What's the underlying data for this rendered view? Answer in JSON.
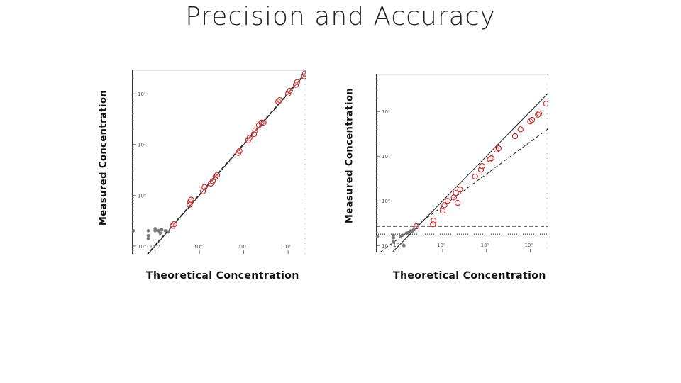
{
  "slide": {
    "title": "Precision and Accuracy"
  },
  "chart_data": [
    {
      "type": "scatter",
      "xlabel": "Theoretical Concentration",
      "ylabel": "Measured Concentration",
      "x_scale": "log",
      "y_scale": "log",
      "xlim": [
        0.03,
        250
      ],
      "ylim": [
        0.07,
        300
      ],
      "x_ticks": [
        {
          "v": 0.1,
          "label": "10⁻¹"
        },
        {
          "v": 1,
          "label": "10⁰"
        },
        {
          "v": 10,
          "label": "10¹"
        },
        {
          "v": 100,
          "label": "10²"
        }
      ],
      "y_ticks": [
        {
          "v": 0.1,
          "label": "10⁻¹"
        },
        {
          "v": 1,
          "label": "10⁰"
        },
        {
          "v": 10,
          "label": "10¹"
        },
        {
          "v": 100,
          "label": "10²"
        }
      ],
      "reference_lines": [
        {
          "kind": "identity",
          "style": "solid"
        },
        {
          "kind": "fit",
          "style": "dashed",
          "slope": 1.0,
          "intercept": 0.02
        }
      ],
      "series": [
        {
          "color": "#cc2222",
          "marker": "open-circle",
          "points": [
            [
              0.25,
              0.25
            ],
            [
              0.27,
              0.27
            ],
            [
              0.6,
              0.65
            ],
            [
              0.62,
              0.75
            ],
            [
              0.65,
              0.82
            ],
            [
              1.2,
              1.2
            ],
            [
              1.3,
              1.45
            ],
            [
              1.8,
              1.7
            ],
            [
              2.0,
              1.9
            ],
            [
              2.3,
              2.3
            ],
            [
              2.5,
              2.5
            ],
            [
              7.5,
              6.8
            ],
            [
              8.0,
              7.5
            ],
            [
              12.5,
              12.0
            ],
            [
              13.5,
              13.5
            ],
            [
              17,
              16
            ],
            [
              18,
              19
            ],
            [
              22,
              24
            ],
            [
              25,
              27
            ],
            [
              28,
              27
            ],
            [
              60,
              70
            ],
            [
              65,
              75
            ],
            [
              100,
              100
            ],
            [
              110,
              115
            ],
            [
              150,
              150
            ],
            [
              160,
              170
            ],
            [
              230,
              220
            ],
            [
              240,
              250
            ]
          ]
        },
        {
          "color": "#777777",
          "marker": "filled-dot",
          "points": [
            [
              0.032,
              0.2
            ],
            [
              0.07,
              0.16
            ],
            [
              0.07,
              0.2
            ],
            [
              0.07,
              0.14
            ],
            [
              0.1,
              0.2
            ],
            [
              0.1,
              0.22
            ],
            [
              0.12,
              0.2
            ],
            [
              0.13,
              0.18
            ],
            [
              0.14,
              0.21
            ],
            [
              0.17,
              0.2
            ],
            [
              0.2,
              0.19
            ]
          ]
        }
      ]
    },
    {
      "type": "scatter",
      "xlabel": "Theoretical Concentration",
      "ylabel": "Measured Concentration",
      "x_scale": "log",
      "y_scale": "log",
      "xlim": [
        0.03,
        250
      ],
      "ylim": [
        0.07,
        700
      ],
      "x_ticks": [
        {
          "v": 0.1,
          "label": "10⁻¹"
        },
        {
          "v": 1,
          "label": "10⁰"
        },
        {
          "v": 10,
          "label": "10¹"
        },
        {
          "v": 100,
          "label": "10²"
        }
      ],
      "y_ticks": [
        {
          "v": 0.1,
          "label": "10⁻¹"
        },
        {
          "v": 1,
          "label": "10⁰"
        },
        {
          "v": 10,
          "label": "10¹"
        },
        {
          "v": 100,
          "label": "10²"
        }
      ],
      "reference_lines": [
        {
          "kind": "identity",
          "style": "solid"
        },
        {
          "kind": "fit",
          "style": "dashed",
          "slope": 0.72,
          "intercept": -0.12
        },
        {
          "kind": "horizontal",
          "style": "dashed",
          "y": 0.27
        },
        {
          "kind": "horizontal",
          "style": "dotted",
          "y": 0.18
        }
      ],
      "series": [
        {
          "color": "#cc2222",
          "marker": "open-circle",
          "points": [
            [
              0.25,
              0.27
            ],
            [
              0.6,
              0.3
            ],
            [
              0.62,
              0.36
            ],
            [
              1.0,
              0.6
            ],
            [
              1.1,
              0.8
            ],
            [
              1.3,
              1.0
            ],
            [
              1.8,
              1.2
            ],
            [
              2.0,
              1.5
            ],
            [
              2.2,
              0.9
            ],
            [
              2.5,
              1.8
            ],
            [
              5.5,
              3.5
            ],
            [
              7.5,
              5.0
            ],
            [
              8.0,
              6.0
            ],
            [
              12,
              8.5
            ],
            [
              13,
              9.0
            ],
            [
              17,
              14
            ],
            [
              19,
              15
            ],
            [
              45,
              28
            ],
            [
              60,
              40
            ],
            [
              100,
              60
            ],
            [
              110,
              65
            ],
            [
              150,
              85
            ],
            [
              160,
              90
            ],
            [
              230,
              150
            ]
          ]
        },
        {
          "color": "#777777",
          "marker": "filled-dot",
          "points": [
            [
              0.075,
              0.15
            ],
            [
              0.075,
              0.12
            ],
            [
              0.075,
              0.17
            ],
            [
              0.11,
              0.16
            ],
            [
              0.12,
              0.17
            ],
            [
              0.13,
              0.1
            ],
            [
              0.15,
              0.19
            ],
            [
              0.17,
              0.2
            ],
            [
              0.2,
              0.21
            ],
            [
              0.22,
              0.23
            ],
            [
              0.032,
              0.16
            ]
          ]
        }
      ]
    }
  ]
}
